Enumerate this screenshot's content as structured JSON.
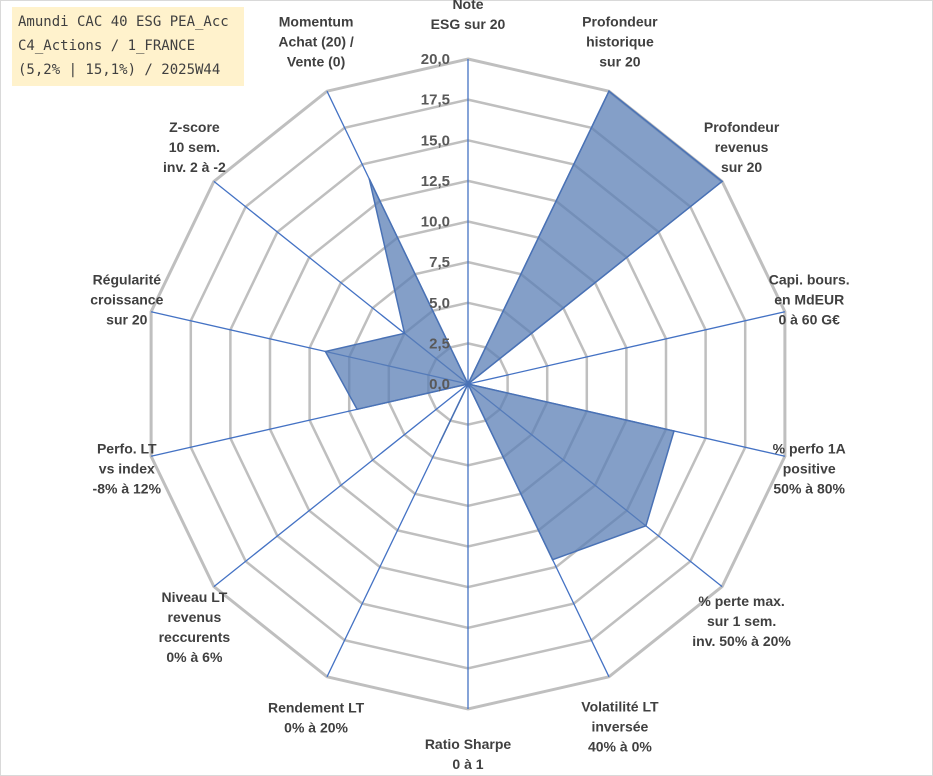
{
  "title_box": {
    "line1": "Amundi CAC 40 ESG PEA_Acc",
    "line2": "C4_Actions / 1_FRANCE",
    "line3": "(5,2% | 15,1%) / 2025W44"
  },
  "chart_data": {
    "type": "radar",
    "rmin": 0,
    "rmax": 20,
    "tick_values": [
      0,
      2.5,
      5,
      7.5,
      10,
      12.5,
      15,
      17.5,
      20
    ],
    "tick_labels": [
      "0,0",
      "2,5",
      "5,0",
      "7,5",
      "10,0",
      "12,5",
      "15,0",
      "17,5",
      "20,0"
    ],
    "grid": true,
    "fill_color": "#5b7fb5",
    "fill_opacity": 0.75,
    "stroke_color": "#4a72b5",
    "grid_color": "#bfbfbf",
    "spoke_color": "#4472c4",
    "axes": [
      {
        "label": [
          "Note",
          "ESG sur 20"
        ],
        "value": 0
      },
      {
        "label": [
          "Profondeur",
          "historique",
          "sur 20"
        ],
        "value": 20
      },
      {
        "label": [
          "Profondeur",
          "revenus",
          "sur 20"
        ],
        "value": 20
      },
      {
        "label": [
          "Capi. bours.",
          "en MdEUR",
          "0 à 60 G€"
        ],
        "value": 0
      },
      {
        "label": [
          "% perfo 1A",
          "positive",
          "50% à 80%"
        ],
        "value": 13
      },
      {
        "label": [
          "% perte max.",
          "sur 1 sem.",
          "inv. 50% à 20%"
        ],
        "value": 14
      },
      {
        "label": [
          "Volatilité LT",
          "inversée",
          "40% à 0%"
        ],
        "value": 12
      },
      {
        "label": [
          "Ratio Sharpe",
          "0 à 1"
        ],
        "value": 0
      },
      {
        "label": [
          "Rendement LT",
          "0% à 20%"
        ],
        "value": 4
      },
      {
        "label": [
          "Niveau LT",
          "revenus",
          "reccurents",
          "0% à 6%"
        ],
        "value": 0
      },
      {
        "label": [
          "Perfo. LT",
          "vs index",
          "-8% à 12%"
        ],
        "value": 7
      },
      {
        "label": [
          "Régularité",
          "croissance",
          "sur 20"
        ],
        "value": 9
      },
      {
        "label": [
          "Z-score",
          "10 sem.",
          "inv. 2 à -2"
        ],
        "value": 5
      },
      {
        "label": [
          "Momentum",
          "Achat (20) /",
          "Vente (0)"
        ],
        "value": 14
      }
    ]
  }
}
